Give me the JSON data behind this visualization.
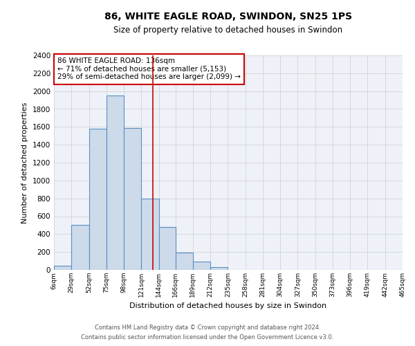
{
  "title": "86, WHITE EAGLE ROAD, SWINDON, SN25 1PS",
  "subtitle": "Size of property relative to detached houses in Swindon",
  "xlabel": "Distribution of detached houses by size in Swindon",
  "ylabel": "Number of detached properties",
  "footer_line1": "Contains HM Land Registry data © Crown copyright and database right 2024.",
  "footer_line2": "Contains public sector information licensed under the Open Government Licence v3.0.",
  "bin_labels": [
    "6sqm",
    "29sqm",
    "52sqm",
    "75sqm",
    "98sqm",
    "121sqm",
    "144sqm",
    "166sqm",
    "189sqm",
    "212sqm",
    "235sqm",
    "258sqm",
    "281sqm",
    "304sqm",
    "327sqm",
    "350sqm",
    "373sqm",
    "396sqm",
    "419sqm",
    "442sqm",
    "465sqm"
  ],
  "bar_values": [
    50,
    500,
    1580,
    1950,
    1590,
    800,
    480,
    190,
    90,
    30,
    0,
    0,
    0,
    0,
    0,
    0,
    0,
    0,
    0,
    0
  ],
  "bar_color": "#ccdaea",
  "bar_edge_color": "#5a8fc2",
  "grid_color": "#cccccc",
  "background_color": "#eef2f8",
  "annotation_text": "86 WHITE EAGLE ROAD: 136sqm\n← 71% of detached houses are smaller (5,153)\n29% of semi-detached houses are larger (2,099) →",
  "annotation_box_edge_color": "#cc0000",
  "vline_x": 136,
  "vline_color": "#cc0000",
  "ylim": [
    0,
    2400
  ],
  "yticks": [
    0,
    200,
    400,
    600,
    800,
    1000,
    1200,
    1400,
    1600,
    1800,
    2000,
    2200,
    2400
  ],
  "bin_edges_numeric": [
    6,
    29,
    52,
    75,
    98,
    121,
    144,
    166,
    189,
    212,
    235,
    258,
    281,
    304,
    327,
    350,
    373,
    396,
    419,
    442,
    465
  ]
}
